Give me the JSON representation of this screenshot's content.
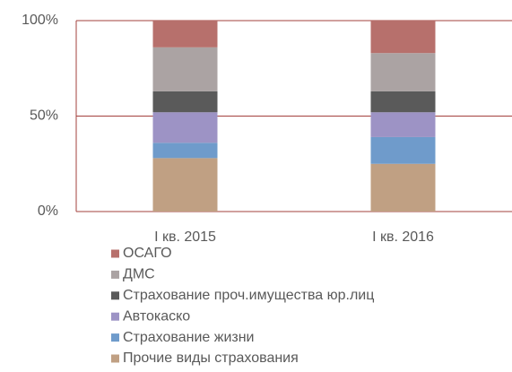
{
  "chart_data": {
    "type": "stacked_bar",
    "categories": [
      "I кв. 2015",
      "I кв. 2016"
    ],
    "series": [
      {
        "name": "Прочие виды страхования",
        "color": "#c0a083",
        "values": [
          28,
          25
        ]
      },
      {
        "name": "Страхование жизни",
        "color": "#6f9bcb",
        "values": [
          8,
          14
        ]
      },
      {
        "name": "Автокаско",
        "color": "#9d93c5",
        "values": [
          16,
          13
        ]
      },
      {
        "name": "Страхование проч.имущества юр.лиц",
        "color": "#5a5a5a",
        "values": [
          11,
          11
        ]
      },
      {
        "name": "ДМС",
        "color": "#aba3a3",
        "values": [
          23,
          20
        ]
      },
      {
        "name": "ОСАГО",
        "color": "#b7706c",
        "values": [
          14,
          17
        ]
      }
    ],
    "ylim": [
      0,
      100
    ],
    "yticks": [
      {
        "value": 0,
        "label": "0%"
      },
      {
        "value": 50,
        "label": "50%"
      },
      {
        "value": 100,
        "label": "100%"
      }
    ],
    "grid": true
  }
}
